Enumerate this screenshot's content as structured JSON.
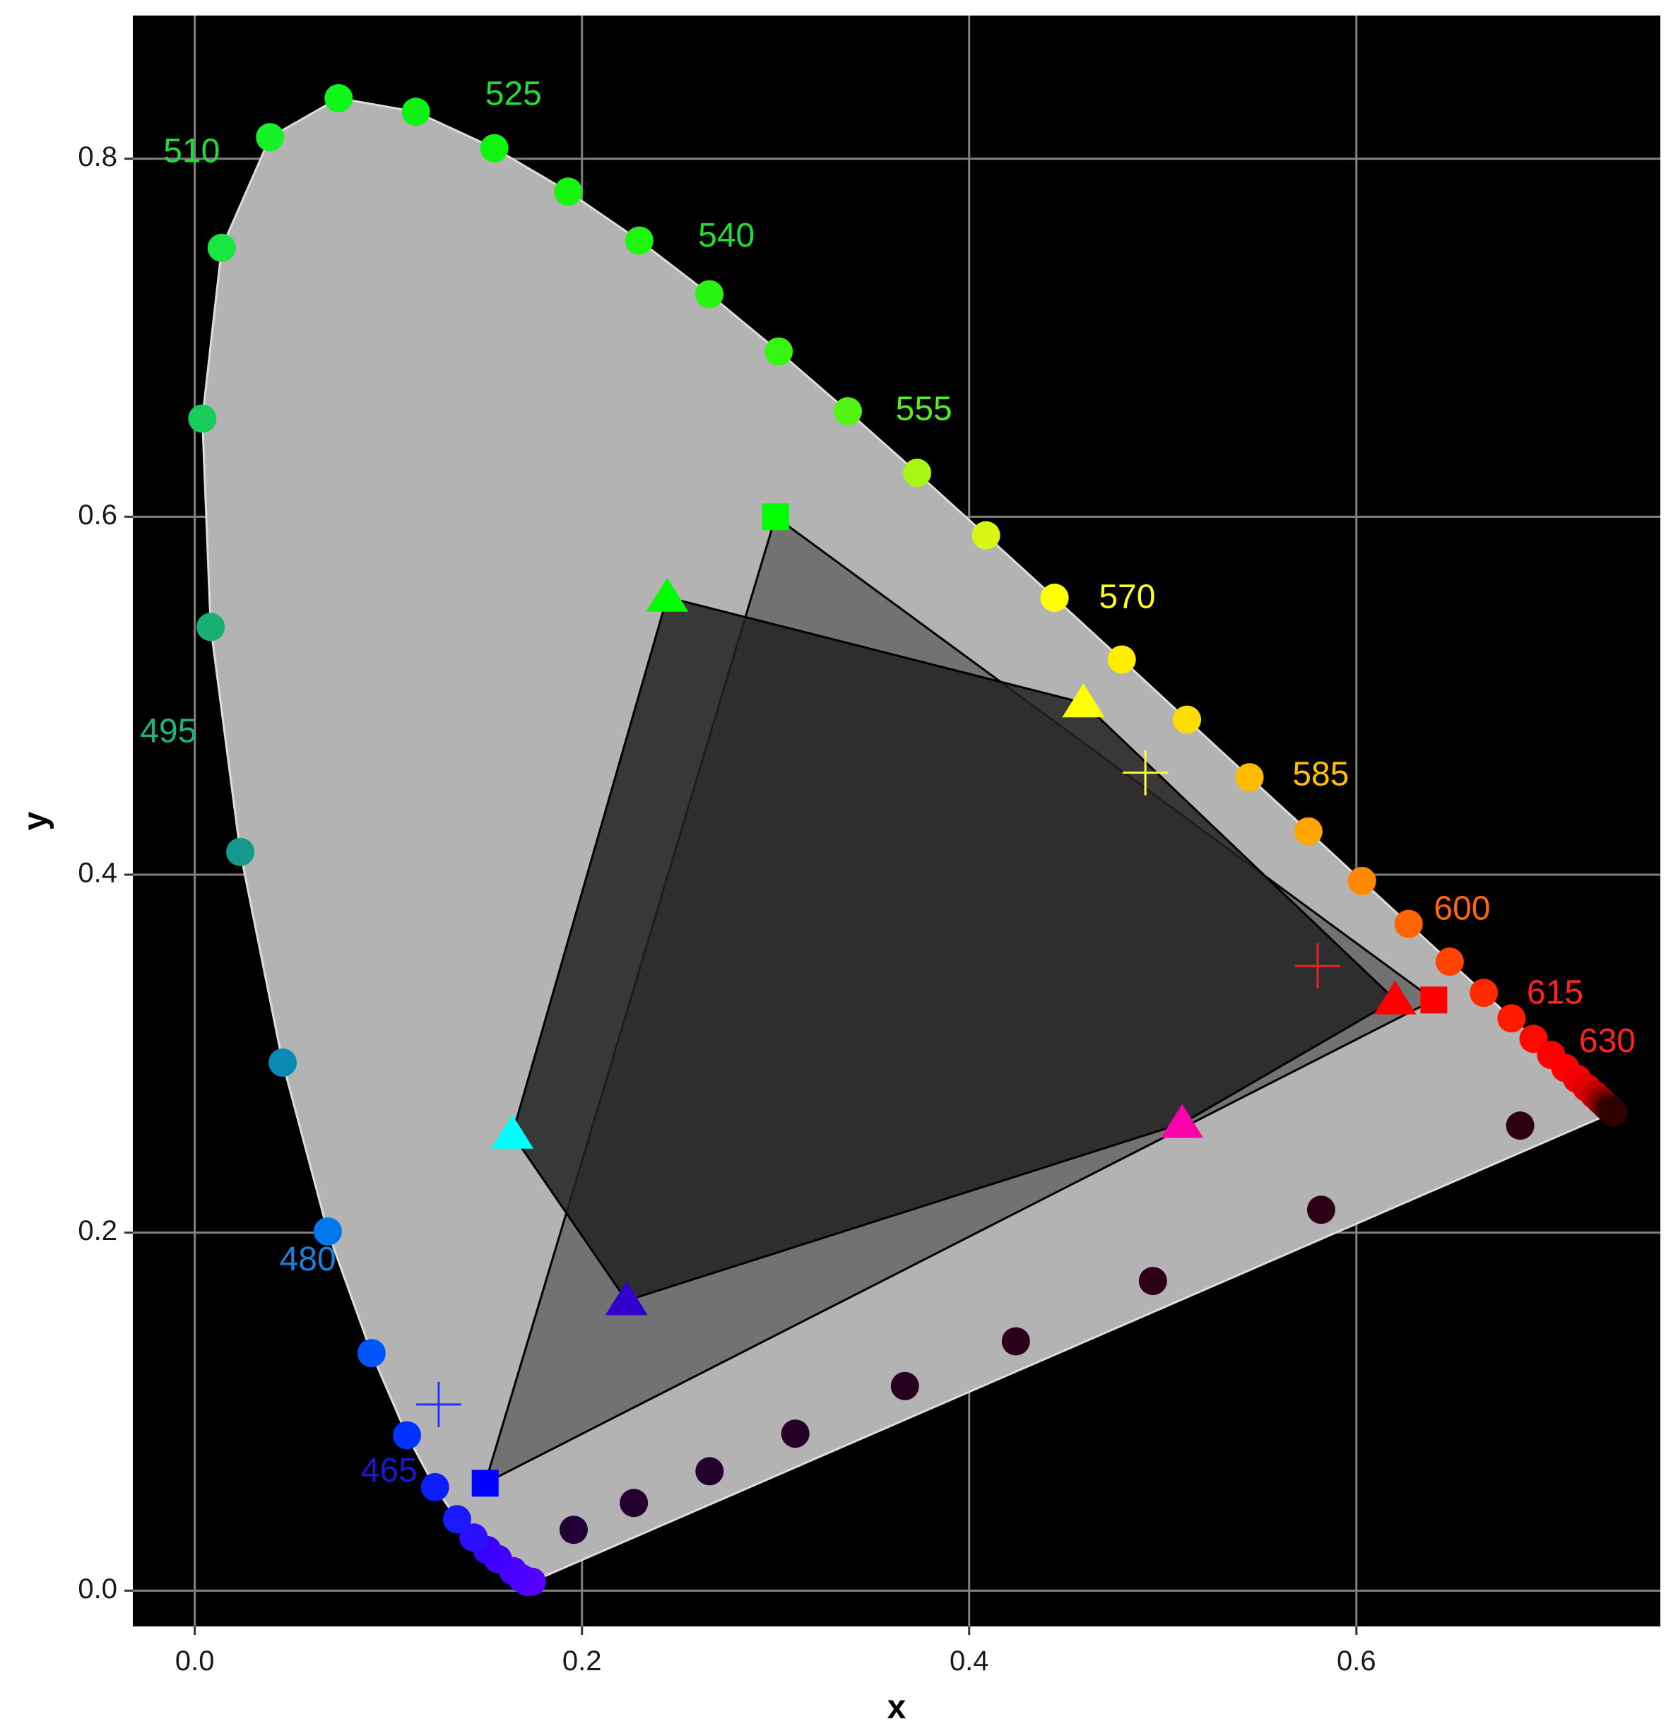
{
  "chart_data": {
    "type": "scatter",
    "title": "",
    "xlabel": "x",
    "ylabel": "y",
    "xlim": [
      -0.032,
      0.757
    ],
    "ylim": [
      -0.02,
      0.88
    ],
    "grid": true,
    "legend": "none",
    "background": "#000000",
    "x_ticks": [
      "0.0",
      "0.2",
      "0.4",
      "0.6"
    ],
    "x_tick_values": [
      0.0,
      0.2,
      0.4,
      0.6
    ],
    "y_ticks": [
      "0.0",
      "0.2",
      "0.4",
      "0.6",
      "0.8"
    ],
    "y_tick_values": [
      0.0,
      0.2,
      0.4,
      0.6,
      0.8
    ],
    "locus_fill": "#b3b3b3",
    "spectral_locus": [
      {
        "x": 0.1741,
        "y": 0.005,
        "color": "#5a00ff"
      },
      {
        "x": 0.172,
        "y": 0.0048,
        "color": "#5600ff"
      },
      {
        "x": 0.1689,
        "y": 0.0069,
        "color": "#5000ff"
      },
      {
        "x": 0.1644,
        "y": 0.0109,
        "color": "#4a00ff"
      },
      {
        "x": 0.1566,
        "y": 0.0177,
        "color": "#4200ff"
      },
      {
        "x": 0.151,
        "y": 0.0227,
        "color": "#3a00ff"
      },
      {
        "x": 0.144,
        "y": 0.0297,
        "color": "#2a10ff"
      },
      {
        "x": 0.1355,
        "y": 0.0399,
        "color": "#1a1aff"
      },
      {
        "x": 0.1241,
        "y": 0.0578,
        "color": "#0a1eff"
      },
      {
        "x": 0.1096,
        "y": 0.0868,
        "color": "#0033ff"
      },
      {
        "x": 0.0913,
        "y": 0.1327,
        "color": "#0055ff"
      },
      {
        "x": 0.0687,
        "y": 0.2007,
        "color": "#0077ee"
      },
      {
        "x": 0.0454,
        "y": 0.295,
        "color": "#0a8ab5"
      },
      {
        "x": 0.0235,
        "y": 0.4127,
        "color": "#139a8c"
      },
      {
        "x": 0.0082,
        "y": 0.5384,
        "color": "#18b072"
      },
      {
        "x": 0.0039,
        "y": 0.6548,
        "color": "#1acd5a"
      },
      {
        "x": 0.0139,
        "y": 0.7502,
        "color": "#19e640"
      },
      {
        "x": 0.0389,
        "y": 0.812,
        "color": "#16f22a"
      },
      {
        "x": 0.0743,
        "y": 0.8338,
        "color": "#10f51a"
      },
      {
        "x": 0.1142,
        "y": 0.8262,
        "color": "#0cf512"
      },
      {
        "x": 0.1547,
        "y": 0.8059,
        "color": "#10f510"
      },
      {
        "x": 0.1929,
        "y": 0.7816,
        "color": "#16f510"
      },
      {
        "x": 0.2296,
        "y": 0.7543,
        "color": "#20f510"
      },
      {
        "x": 0.2658,
        "y": 0.7243,
        "color": "#2af512"
      },
      {
        "x": 0.3016,
        "y": 0.6923,
        "color": "#36f512"
      },
      {
        "x": 0.3373,
        "y": 0.6589,
        "color": "#52f514"
      },
      {
        "x": 0.3731,
        "y": 0.6245,
        "color": "#a8f516"
      },
      {
        "x": 0.4087,
        "y": 0.5896,
        "color": "#d8f516"
      },
      {
        "x": 0.4441,
        "y": 0.5547,
        "color": "#ffff00"
      },
      {
        "x": 0.4788,
        "y": 0.5202,
        "color": "#ffee00"
      },
      {
        "x": 0.5125,
        "y": 0.4866,
        "color": "#ffdd00"
      },
      {
        "x": 0.5448,
        "y": 0.4544,
        "color": "#ffbb00"
      },
      {
        "x": 0.5752,
        "y": 0.4242,
        "color": "#ffa500"
      },
      {
        "x": 0.6029,
        "y": 0.3965,
        "color": "#ff8800"
      },
      {
        "x": 0.627,
        "y": 0.3725,
        "color": "#ff6600"
      },
      {
        "x": 0.6482,
        "y": 0.3514,
        "color": "#ff4400"
      },
      {
        "x": 0.6658,
        "y": 0.334,
        "color": "#ff2a00"
      },
      {
        "x": 0.6801,
        "y": 0.3197,
        "color": "#ff1a00"
      },
      {
        "x": 0.6915,
        "y": 0.3083,
        "color": "#ff0a00"
      },
      {
        "x": 0.7006,
        "y": 0.2993,
        "color": "#ff0000"
      },
      {
        "x": 0.7079,
        "y": 0.292,
        "color": "#ff0000"
      },
      {
        "x": 0.714,
        "y": 0.2859,
        "color": "#f50000"
      },
      {
        "x": 0.719,
        "y": 0.2809,
        "color": "#e00000"
      },
      {
        "x": 0.723,
        "y": 0.277,
        "color": "#c40000"
      },
      {
        "x": 0.726,
        "y": 0.274,
        "color": "#a00000"
      },
      {
        "x": 0.7283,
        "y": 0.2717,
        "color": "#7a0000"
      },
      {
        "x": 0.73,
        "y": 0.27,
        "color": "#5a0000"
      },
      {
        "x": 0.7311,
        "y": 0.2689,
        "color": "#400000"
      },
      {
        "x": 0.732,
        "y": 0.268,
        "color": "#350000"
      },
      {
        "x": 0.7327,
        "y": 0.2673,
        "color": "#300000"
      }
    ],
    "purple_line": [
      {
        "x": 0.6846,
        "y": 0.2598,
        "color": "#2f0012"
      },
      {
        "x": 0.5818,
        "y": 0.2128,
        "color": "#2e0016"
      },
      {
        "x": 0.4949,
        "y": 0.173,
        "color": "#2d0018"
      },
      {
        "x": 0.4241,
        "y": 0.1393,
        "color": "#2b001c"
      },
      {
        "x": 0.3668,
        "y": 0.1143,
        "color": "#280020"
      },
      {
        "x": 0.3102,
        "y": 0.0877,
        "color": "#260028"
      },
      {
        "x": 0.2659,
        "y": 0.0667,
        "color": "#24002c"
      },
      {
        "x": 0.2268,
        "y": 0.049,
        "color": "#230030"
      },
      {
        "x": 0.1957,
        "y": 0.034,
        "color": "#220036"
      }
    ],
    "wavelength_labels": [
      {
        "text": "465",
        "x": 0.115,
        "y": 0.066,
        "anchor": "end",
        "color": "#1a1acc"
      },
      {
        "text": "480",
        "x": 0.073,
        "y": 0.184,
        "anchor": "end",
        "color": "#1f7fd6"
      },
      {
        "text": "495",
        "x": 0.001,
        "y": 0.479,
        "anchor": "end",
        "color": "#1ab383"
      },
      {
        "text": "510",
        "x": 0.013,
        "y": 0.803,
        "anchor": "end",
        "color": "#22dd33"
      },
      {
        "text": "525",
        "x": 0.15,
        "y": 0.835,
        "anchor": "start",
        "color": "#22dd33"
      },
      {
        "text": "540",
        "x": 0.26,
        "y": 0.756,
        "anchor": "start",
        "color": "#22dd33"
      },
      {
        "text": "555",
        "x": 0.362,
        "y": 0.659,
        "anchor": "start",
        "color": "#55ee22"
      },
      {
        "text": "570",
        "x": 0.467,
        "y": 0.554,
        "anchor": "start",
        "color": "#ffff22"
      },
      {
        "text": "585",
        "x": 0.567,
        "y": 0.455,
        "anchor": "start",
        "color": "#ffc000"
      },
      {
        "text": "600",
        "x": 0.64,
        "y": 0.38,
        "anchor": "start",
        "color": "#ff6611"
      },
      {
        "text": "615",
        "x": 0.688,
        "y": 0.333,
        "anchor": "start",
        "color": "#ff2222"
      },
      {
        "text": "630",
        "x": 0.715,
        "y": 0.306,
        "anchor": "start",
        "color": "#ff2222"
      }
    ],
    "gamut_square": {
      "fill": "#666666",
      "vertices": [
        {
          "x": 0.64,
          "y": 0.33,
          "color": "#ff0000"
        },
        {
          "x": 0.3,
          "y": 0.6,
          "color": "#00ff00"
        },
        {
          "x": 0.15,
          "y": 0.06,
          "color": "#0000ff"
        }
      ]
    },
    "gamut_triangle": {
      "fill": "#222222",
      "vertices": [
        {
          "x": 0.62,
          "y": 0.33,
          "color": "#ff0000"
        },
        {
          "x": 0.459,
          "y": 0.496,
          "color": "#ffff00"
        },
        {
          "x": 0.244,
          "y": 0.555,
          "color": "#00ff00"
        },
        {
          "x": 0.164,
          "y": 0.255,
          "color": "#00ffff"
        },
        {
          "x": 0.223,
          "y": 0.162,
          "color": "#3300cc"
        },
        {
          "x": 0.51,
          "y": 0.261,
          "color": "#ff00aa"
        }
      ]
    },
    "crosses": [
      {
        "x": 0.126,
        "y": 0.104,
        "color": "#2233ff"
      },
      {
        "x": 0.491,
        "y": 0.457,
        "color": "#ffff33"
      },
      {
        "x": 0.58,
        "y": 0.349,
        "color": "#ee2222"
      }
    ],
    "colors": {
      "panel": "#000000",
      "gridline": "#808080",
      "outline": "#000000",
      "locus_border": "#dddddd"
    }
  }
}
